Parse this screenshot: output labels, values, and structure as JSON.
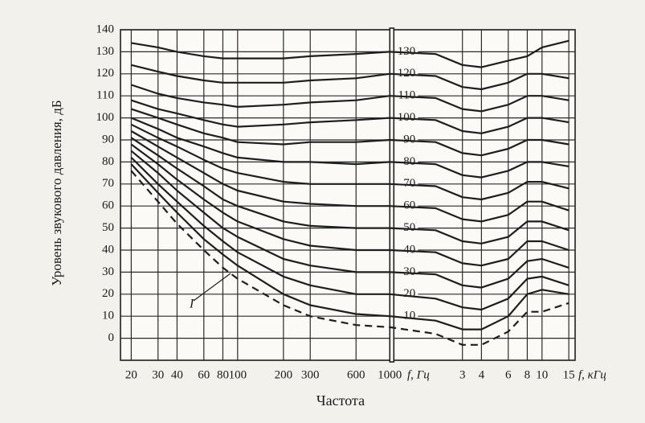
{
  "chart_data": {
    "type": "line",
    "x_label": "Частота",
    "y_label": "Уровень звукового давления, дБ",
    "x_unit_left": "f, Гц",
    "x_unit_right": "f, кГц",
    "annotation": "I",
    "log_x": true,
    "grid": true,
    "axis_break": 1000,
    "x": [
      20,
      30,
      40,
      60,
      80,
      100,
      200,
      300,
      600,
      1000,
      2000,
      3000,
      4000,
      6000,
      8000,
      10000,
      15000
    ],
    "xlim": [
      17,
      16500
    ],
    "xticks": [
      20,
      30,
      40,
      60,
      80,
      100,
      200,
      300,
      600,
      1000,
      {
        "value": 3000,
        "label": "3"
      },
      {
        "value": 4000,
        "label": "4"
      },
      {
        "value": 6000,
        "label": "6"
      },
      {
        "value": 8000,
        "label": "8"
      },
      {
        "value": 10000,
        "label": "10"
      },
      {
        "value": 15000,
        "label": "15"
      }
    ],
    "ylim": [
      -10,
      140
    ],
    "yticks": [
      0,
      10,
      20,
      30,
      40,
      50,
      60,
      70,
      80,
      90,
      100,
      110,
      120,
      130,
      140
    ],
    "y2lim": [
      -10,
      140
    ],
    "y2ticks": [
      10,
      20,
      30,
      40,
      50,
      60,
      70,
      80,
      90,
      100,
      110,
      120,
      130
    ],
    "series": [
      {
        "color": "#1e1e1e",
        "dashed": true,
        "values": [
          76,
          62,
          52,
          40,
          32,
          27,
          15,
          10,
          6,
          5,
          2,
          -3,
          -3,
          3,
          12,
          12,
          16
        ]
      },
      {
        "color": "#1e1e1e",
        "values": [
          79,
          66,
          57,
          45,
          38,
          33,
          20,
          15,
          11,
          10,
          8,
          4,
          4,
          10,
          20,
          22,
          20
        ]
      },
      {
        "color": "#1e1e1e",
        "values": [
          82,
          70,
          62,
          51,
          44,
          39,
          28,
          24,
          20,
          20,
          18,
          14,
          13,
          18,
          27,
          28,
          24
        ]
      },
      {
        "color": "#1e1e1e",
        "values": [
          85,
          75,
          67,
          57,
          50,
          46,
          36,
          33,
          30,
          30,
          29,
          24,
          23,
          27,
          35,
          36,
          32
        ]
      },
      {
        "color": "#1e1e1e",
        "values": [
          88,
          79,
          72,
          63,
          57,
          53,
          45,
          42,
          40,
          40,
          39,
          34,
          33,
          36,
          44,
          44,
          40
        ]
      },
      {
        "color": "#1e1e1e",
        "values": [
          91,
          83,
          77,
          69,
          63,
          60,
          53,
          51,
          50,
          50,
          49,
          44,
          43,
          46,
          53,
          53,
          49
        ]
      },
      {
        "color": "#1e1e1e",
        "values": [
          94,
          87,
          82,
          75,
          70,
          67,
          62,
          61,
          60,
          60,
          59,
          54,
          53,
          56,
          62,
          62,
          58
        ]
      },
      {
        "color": "#1e1e1e",
        "values": [
          97,
          91,
          87,
          81,
          77,
          75,
          71,
          70,
          70,
          70,
          69,
          64,
          63,
          66,
          71,
          71,
          68
        ]
      },
      {
        "color": "#1e1e1e",
        "values": [
          100,
          95,
          91,
          87,
          84,
          82,
          80,
          80,
          79,
          80,
          79,
          74,
          73,
          76,
          80,
          80,
          78
        ]
      },
      {
        "color": "#1e1e1e",
        "values": [
          104,
          100,
          97,
          93,
          91,
          89,
          88,
          89,
          89,
          90,
          89,
          84,
          83,
          86,
          90,
          90,
          88
        ]
      },
      {
        "color": "#1e1e1e",
        "values": [
          108,
          104,
          102,
          99,
          97,
          96,
          97,
          98,
          99,
          100,
          99,
          94,
          93,
          96,
          100,
          100,
          98
        ]
      },
      {
        "color": "#1e1e1e",
        "values": [
          115,
          111,
          109,
          107,
          106,
          105,
          106,
          107,
          108,
          110,
          109,
          104,
          103,
          106,
          110,
          110,
          108
        ]
      },
      {
        "color": "#1e1e1e",
        "values": [
          124,
          121,
          119,
          117,
          116,
          116,
          116,
          117,
          118,
          120,
          119,
          114,
          113,
          116,
          120,
          120,
          118
        ]
      },
      {
        "color": "#1e1e1e",
        "values": [
          134,
          132,
          130,
          128,
          127,
          127,
          127,
          128,
          129,
          130,
          129,
          124,
          123,
          126,
          128,
          132,
          135
        ]
      }
    ]
  }
}
